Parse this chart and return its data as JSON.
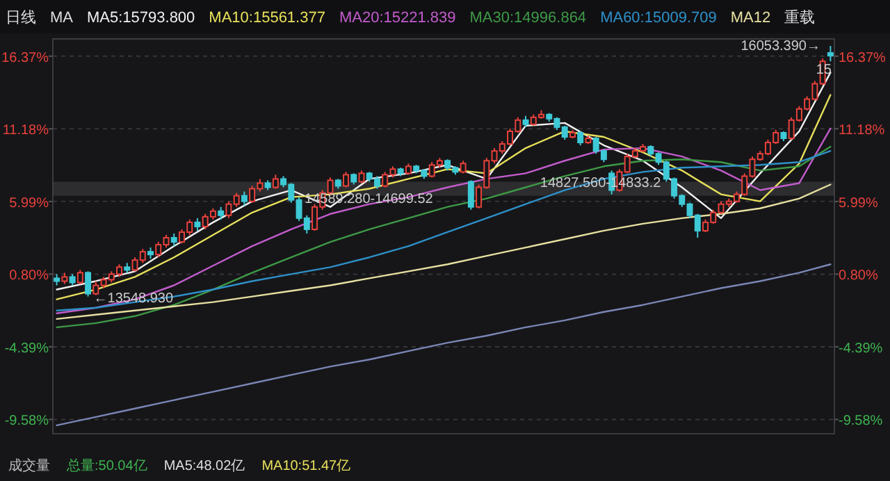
{
  "chart_data": {
    "type": "candlestick",
    "categories": [
      null,
      null,
      null,
      null,
      null,
      null,
      null,
      null,
      null,
      null,
      null,
      null,
      null,
      null,
      null,
      null,
      null,
      null,
      null,
      null,
      null,
      null,
      null,
      null,
      null,
      null,
      null,
      null,
      null,
      null,
      null,
      null,
      null,
      null,
      null,
      null,
      null,
      null,
      null,
      null,
      null,
      null,
      null,
      null,
      null,
      null,
      null,
      null,
      null,
      null,
      null,
      null,
      null,
      null,
      null,
      null,
      null,
      null,
      null,
      null,
      null,
      null,
      null,
      null,
      null,
      null,
      null,
      null,
      null,
      null,
      null,
      null,
      null,
      null,
      null,
      null,
      null,
      null,
      null,
      null,
      null,
      null,
      null,
      null,
      null,
      null,
      null,
      null,
      null,
      null,
      null,
      null,
      null,
      null,
      null,
      null,
      null,
      null,
      null,
      null
    ],
    "ohlc": [
      [
        0.5,
        0.8,
        0.0,
        0.3
      ],
      [
        0.3,
        0.9,
        0.1,
        0.6
      ],
      [
        0.6,
        0.8,
        0.0,
        0.2
      ],
      [
        0.2,
        1.1,
        0.1,
        0.9
      ],
      [
        0.9,
        1.0,
        -0.8,
        -0.6
      ],
      [
        -0.6,
        0.3,
        -0.7,
        0.0
      ],
      [
        0.0,
        0.6,
        -0.2,
        0.4
      ],
      [
        0.4,
        1.0,
        0.2,
        0.8
      ],
      [
        0.8,
        1.5,
        0.6,
        1.3
      ],
      [
        1.3,
        1.6,
        0.9,
        1.1
      ],
      [
        1.1,
        2.0,
        1.0,
        1.8
      ],
      [
        1.8,
        2.6,
        1.6,
        2.4
      ],
      [
        2.4,
        2.7,
        1.9,
        2.2
      ],
      [
        2.2,
        3.1,
        2.0,
        2.9
      ],
      [
        2.9,
        3.6,
        2.7,
        3.4
      ],
      [
        3.4,
        3.7,
        2.8,
        3.1
      ],
      [
        3.1,
        4.0,
        3.0,
        3.8
      ],
      [
        3.8,
        4.7,
        3.6,
        4.5
      ],
      [
        4.5,
        4.8,
        3.9,
        4.2
      ],
      [
        4.2,
        5.1,
        4.0,
        4.9
      ],
      [
        4.9,
        5.5,
        4.7,
        5.3
      ],
      [
        5.3,
        5.6,
        4.7,
        5.0
      ],
      [
        5.0,
        6.0,
        4.8,
        5.8
      ],
      [
        5.8,
        6.6,
        5.6,
        6.4
      ],
      [
        6.4,
        6.7,
        5.7,
        6.0
      ],
      [
        6.0,
        7.1,
        5.9,
        6.9
      ],
      [
        6.9,
        7.6,
        6.7,
        7.3
      ],
      [
        7.3,
        7.5,
        6.8,
        7.0
      ],
      [
        7.0,
        7.9,
        6.9,
        7.6
      ],
      [
        7.6,
        7.8,
        7.0,
        7.2
      ],
      [
        7.2,
        7.3,
        5.9,
        6.1
      ],
      [
        6.1,
        6.3,
        4.6,
        4.8
      ],
      [
        4.8,
        5.0,
        3.7,
        4.0
      ],
      [
        4.0,
        5.8,
        3.9,
        5.6
      ],
      [
        5.6,
        6.8,
        5.4,
        6.6
      ],
      [
        6.6,
        7.7,
        6.4,
        7.5
      ],
      [
        7.5,
        7.6,
        6.9,
        7.1
      ],
      [
        7.1,
        8.1,
        7.0,
        7.9
      ],
      [
        7.9,
        8.0,
        7.2,
        7.4
      ],
      [
        7.4,
        8.2,
        7.3,
        8.0
      ],
      [
        8.0,
        8.1,
        7.4,
        7.6
      ],
      [
        7.6,
        7.8,
        6.9,
        7.1
      ],
      [
        7.1,
        8.1,
        7.0,
        7.9
      ],
      [
        7.9,
        8.5,
        7.7,
        8.3
      ],
      [
        8.3,
        8.4,
        7.8,
        8.0
      ],
      [
        8.0,
        8.7,
        7.9,
        8.5
      ],
      [
        8.5,
        8.6,
        8.0,
        8.2
      ],
      [
        8.2,
        8.3,
        7.6,
        7.8
      ],
      [
        7.8,
        8.8,
        7.7,
        8.6
      ],
      [
        8.6,
        9.1,
        8.4,
        8.9
      ],
      [
        8.9,
        9.0,
        8.2,
        8.4
      ],
      [
        8.4,
        8.5,
        7.9,
        8.1
      ],
      [
        8.1,
        8.9,
        8.0,
        8.7
      ],
      [
        7.4,
        7.5,
        5.4,
        5.6
      ],
      [
        5.6,
        7.2,
        5.5,
        7.0
      ],
      [
        7.0,
        9.1,
        6.9,
        8.9
      ],
      [
        8.9,
        9.8,
        8.7,
        9.6
      ],
      [
        9.6,
        10.3,
        9.4,
        10.1
      ],
      [
        10.1,
        11.2,
        10.0,
        11.0
      ],
      [
        11.0,
        12.0,
        10.9,
        11.8
      ],
      [
        11.8,
        12.1,
        11.3,
        11.5
      ],
      [
        11.5,
        12.2,
        11.4,
        12.0
      ],
      [
        12.0,
        12.5,
        11.9,
        12.2
      ],
      [
        12.2,
        12.3,
        11.7,
        11.9
      ],
      [
        11.9,
        12.0,
        11.1,
        11.3
      ],
      [
        11.3,
        11.4,
        10.4,
        10.6
      ],
      [
        10.6,
        11.1,
        10.5,
        10.9
      ],
      [
        10.9,
        11.0,
        10.0,
        10.2
      ],
      [
        10.2,
        10.7,
        10.1,
        10.5
      ],
      [
        10.5,
        10.6,
        9.4,
        9.6
      ],
      [
        9.6,
        9.7,
        8.8,
        9.0
      ],
      [
        8.0,
        8.2,
        6.5,
        6.8
      ],
      [
        6.8,
        8.3,
        6.7,
        8.1
      ],
      [
        8.1,
        9.4,
        8.0,
        9.2
      ],
      [
        9.2,
        9.8,
        9.1,
        9.6
      ],
      [
        9.6,
        10.1,
        9.5,
        9.9
      ],
      [
        9.9,
        10.0,
        9.2,
        9.4
      ],
      [
        9.4,
        9.5,
        8.6,
        8.8
      ],
      [
        8.8,
        8.9,
        7.4,
        7.6
      ],
      [
        7.6,
        7.7,
        6.2,
        6.4
      ],
      [
        6.4,
        6.5,
        5.6,
        5.8
      ],
      [
        5.8,
        5.9,
        4.8,
        5.0
      ],
      [
        5.0,
        5.1,
        3.4,
        3.9
      ],
      [
        3.9,
        4.7,
        3.8,
        4.5
      ],
      [
        4.5,
        5.4,
        4.4,
        5.2
      ],
      [
        5.2,
        6.0,
        5.1,
        5.8
      ],
      [
        5.8,
        6.2,
        5.6,
        6.0
      ],
      [
        6.0,
        6.7,
        5.9,
        6.5
      ],
      [
        6.5,
        8.0,
        6.4,
        7.8
      ],
      [
        7.8,
        9.2,
        7.7,
        9.0
      ],
      [
        9.0,
        9.6,
        8.9,
        9.4
      ],
      [
        9.4,
        10.4,
        9.3,
        10.2
      ],
      [
        10.2,
        11.1,
        10.1,
        10.9
      ],
      [
        10.9,
        11.0,
        10.3,
        10.5
      ],
      [
        10.5,
        12.0,
        10.4,
        11.8
      ],
      [
        11.8,
        12.8,
        11.7,
        12.6
      ],
      [
        12.6,
        13.5,
        12.5,
        13.3
      ],
      [
        13.3,
        14.6,
        13.2,
        14.4
      ],
      [
        14.4,
        16.2,
        14.3,
        16.0
      ],
      [
        16.6,
        17.1,
        16.0,
        16.4
      ]
    ],
    "series": [
      {
        "type": "line",
        "name": "MA5:15793.800",
        "color": "#f0f0f0",
        "values": [
          -0.3,
          null,
          null,
          null,
          null,
          0.3,
          null,
          null,
          null,
          null,
          1.0,
          null,
          null,
          null,
          null,
          2.8,
          null,
          null,
          null,
          null,
          4.5,
          null,
          null,
          null,
          null,
          6.0,
          null,
          null,
          null,
          null,
          6.8,
          null,
          null,
          null,
          null,
          5.6,
          null,
          null,
          null,
          null,
          7.6,
          null,
          null,
          null,
          null,
          8.0,
          null,
          null,
          null,
          null,
          8.6,
          null,
          null,
          null,
          null,
          7.6,
          null,
          null,
          null,
          null,
          11.4,
          null,
          null,
          null,
          null,
          11.6,
          null,
          null,
          null,
          null,
          10.0,
          null,
          null,
          null,
          null,
          8.9,
          null,
          null,
          null,
          null,
          7.0,
          null,
          null,
          null,
          null,
          4.8,
          null,
          null,
          null,
          null,
          8.0,
          null,
          null,
          null,
          null,
          11.0,
          null,
          null,
          null,
          15.2
        ]
      },
      {
        "type": "line",
        "name": "MA10:15561.377",
        "color": "#e8e05a",
        "values": [
          -1.0,
          null,
          null,
          null,
          null,
          -0.3,
          null,
          null,
          null,
          null,
          0.6,
          null,
          null,
          null,
          null,
          2.0,
          null,
          null,
          null,
          null,
          3.6,
          null,
          null,
          null,
          null,
          5.2,
          null,
          null,
          null,
          null,
          6.3,
          null,
          null,
          null,
          null,
          6.5,
          null,
          null,
          null,
          null,
          6.9,
          null,
          null,
          null,
          null,
          7.6,
          null,
          null,
          null,
          null,
          8.3,
          null,
          null,
          null,
          null,
          8.0,
          null,
          null,
          null,
          null,
          9.8,
          null,
          null,
          null,
          null,
          11.0,
          null,
          null,
          null,
          null,
          10.6,
          null,
          null,
          null,
          null,
          9.5,
          null,
          null,
          null,
          null,
          8.2,
          null,
          null,
          null,
          null,
          6.5,
          null,
          null,
          null,
          null,
          6.0,
          null,
          null,
          null,
          null,
          8.7,
          null,
          null,
          null,
          13.6
        ]
      },
      {
        "type": "line",
        "name": "MA20:15221.839",
        "color": "#c35ccc",
        "values": [
          -2.0,
          null,
          null,
          null,
          null,
          -1.6,
          null,
          null,
          null,
          null,
          -1.0,
          null,
          null,
          null,
          null,
          0.0,
          null,
          null,
          null,
          null,
          1.4,
          null,
          null,
          null,
          null,
          2.8,
          null,
          null,
          null,
          null,
          4.0,
          null,
          null,
          null,
          null,
          5.1,
          null,
          null,
          null,
          null,
          5.8,
          null,
          null,
          null,
          null,
          6.3,
          null,
          null,
          null,
          null,
          7.0,
          null,
          null,
          null,
          null,
          7.6,
          null,
          null,
          null,
          null,
          8.0,
          null,
          null,
          null,
          null,
          8.9,
          null,
          null,
          null,
          null,
          9.7,
          null,
          null,
          null,
          null,
          9.8,
          null,
          null,
          null,
          null,
          9.2,
          null,
          null,
          null,
          null,
          8.2,
          null,
          null,
          null,
          null,
          6.8,
          null,
          null,
          null,
          null,
          7.3,
          null,
          null,
          null,
          11.2
        ]
      },
      {
        "type": "line",
        "name": "MA30:14996.864",
        "color": "#3e9a46",
        "values": [
          -3.0,
          null,
          null,
          null,
          null,
          -2.7,
          null,
          null,
          null,
          null,
          -2.2,
          null,
          null,
          null,
          null,
          -1.4,
          null,
          null,
          null,
          null,
          -0.3,
          null,
          null,
          null,
          null,
          0.9,
          null,
          null,
          null,
          null,
          2.0,
          null,
          null,
          null,
          null,
          3.1,
          null,
          null,
          null,
          null,
          4.0,
          null,
          null,
          null,
          null,
          4.8,
          null,
          null,
          null,
          null,
          5.6,
          null,
          null,
          null,
          null,
          6.2,
          null,
          null,
          null,
          null,
          7.0,
          null,
          null,
          null,
          null,
          7.8,
          null,
          null,
          null,
          null,
          8.5,
          null,
          null,
          null,
          null,
          8.9,
          null,
          null,
          null,
          null,
          9.0,
          null,
          null,
          null,
          null,
          8.8,
          null,
          null,
          null,
          null,
          8.2,
          null,
          null,
          null,
          null,
          8.5,
          null,
          null,
          null,
          9.9
        ]
      },
      {
        "type": "line",
        "name": "MA60:15009.709",
        "color": "#2e90c8",
        "values": [
          -1.8,
          null,
          null,
          null,
          null,
          -1.6,
          null,
          null,
          null,
          null,
          -1.2,
          null,
          null,
          null,
          null,
          -0.8,
          null,
          null,
          null,
          null,
          -0.3,
          null,
          null,
          null,
          null,
          0.3,
          null,
          null,
          null,
          null,
          0.8,
          null,
          null,
          null,
          null,
          1.3,
          null,
          null,
          null,
          null,
          2.0,
          null,
          null,
          null,
          null,
          2.8,
          null,
          null,
          null,
          null,
          3.8,
          null,
          null,
          null,
          null,
          4.8,
          null,
          null,
          null,
          null,
          5.8,
          null,
          null,
          null,
          null,
          6.8,
          null,
          null,
          null,
          null,
          7.6,
          null,
          null,
          null,
          null,
          8.1,
          null,
          null,
          null,
          null,
          8.4,
          null,
          null,
          null,
          null,
          8.5,
          null,
          null,
          null,
          null,
          8.6,
          null,
          null,
          null,
          null,
          8.8,
          null,
          null,
          null,
          9.6
        ]
      },
      {
        "type": "line",
        "name": "MA12",
        "color": "#e6e0a0",
        "values": [
          -2.4,
          null,
          null,
          null,
          null,
          -2.1,
          null,
          null,
          null,
          null,
          -1.8,
          null,
          null,
          null,
          null,
          -1.5,
          null,
          null,
          null,
          null,
          -1.2,
          null,
          null,
          null,
          null,
          -0.8,
          null,
          null,
          null,
          null,
          -0.4,
          null,
          null,
          null,
          null,
          0.0,
          null,
          null,
          null,
          null,
          0.5,
          null,
          null,
          null,
          null,
          1.0,
          null,
          null,
          null,
          null,
          1.5,
          null,
          null,
          null,
          null,
          2.1,
          null,
          null,
          null,
          null,
          2.7,
          null,
          null,
          null,
          null,
          3.3,
          null,
          null,
          null,
          null,
          3.9,
          null,
          null,
          null,
          null,
          4.4,
          null,
          null,
          null,
          null,
          4.8,
          null,
          null,
          null,
          null,
          5.1,
          null,
          null,
          null,
          null,
          5.5,
          null,
          null,
          null,
          null,
          6.2,
          null,
          null,
          null,
          7.2
        ]
      },
      {
        "type": "line",
        "color": "#7a86b5",
        "values": [
          -10.0,
          null,
          null,
          null,
          null,
          -9.4,
          null,
          null,
          null,
          null,
          -8.8,
          null,
          null,
          null,
          null,
          -8.2,
          null,
          null,
          null,
          null,
          -7.6,
          null,
          null,
          null,
          null,
          -7.0,
          null,
          null,
          null,
          null,
          -6.4,
          null,
          null,
          null,
          null,
          -5.8,
          null,
          null,
          null,
          null,
          -5.3,
          null,
          null,
          null,
          null,
          -4.7,
          null,
          null,
          null,
          null,
          -4.1,
          null,
          null,
          null,
          null,
          -3.6,
          null,
          null,
          null,
          null,
          -3.0,
          null,
          null,
          null,
          null,
          -2.5,
          null,
          null,
          null,
          null,
          -1.9,
          null,
          null,
          null,
          null,
          -1.4,
          null,
          null,
          null,
          null,
          -0.8,
          null,
          null,
          null,
          null,
          -0.2,
          null,
          null,
          null,
          null,
          0.3,
          null,
          null,
          null,
          null,
          0.9,
          null,
          null,
          null,
          1.5
        ]
      }
    ],
    "ylim": [
      -10.6,
      17.6
    ],
    "yticks": [
      {
        "value": 16.37,
        "label": "16.37%"
      },
      {
        "value": 11.18,
        "label": "11.18%"
      },
      {
        "value": 5.99,
        "label": "5.99%"
      },
      {
        "value": 0.8,
        "label": "0.80%"
      },
      {
        "value": -4.39,
        "label": "-4.39%"
      },
      {
        "value": -9.58,
        "label": "-9.58%"
      }
    ],
    "y2lim": [
      -10.6,
      17.6
    ],
    "y2ticks": [
      {
        "value": 16.37,
        "label": "16.37%"
      },
      {
        "value": 11.18,
        "label": "11.18%"
      },
      {
        "value": 5.99,
        "label": "5.99%"
      },
      {
        "value": 0.8,
        "label": "0.80%"
      },
      {
        "value": -4.39,
        "label": "-4.39%"
      },
      {
        "value": -9.58,
        "label": "-9.58%"
      }
    ],
    "grid": "y",
    "legend": "top",
    "bands": [
      {
        "axis": "y",
        "from": 6.4,
        "to": 7.4,
        "color": "#5a5a5a"
      }
    ],
    "annotations": [
      "日线",
      "MA",
      "重载",
      "成交量",
      "总量:50.04亿",
      "MA5:48.02亿",
      "MA10:51.47亿",
      "16053.390→",
      {
        "text": "←13548.930",
        "y": -0.8
      },
      {
        "text": "15",
        "y": 15.5
      },
      {
        "text": "14827.560-14833.2",
        "y": 7.4
      },
      {
        "text": "14589.280-14699.52",
        "y": 6.3
      }
    ]
  }
}
